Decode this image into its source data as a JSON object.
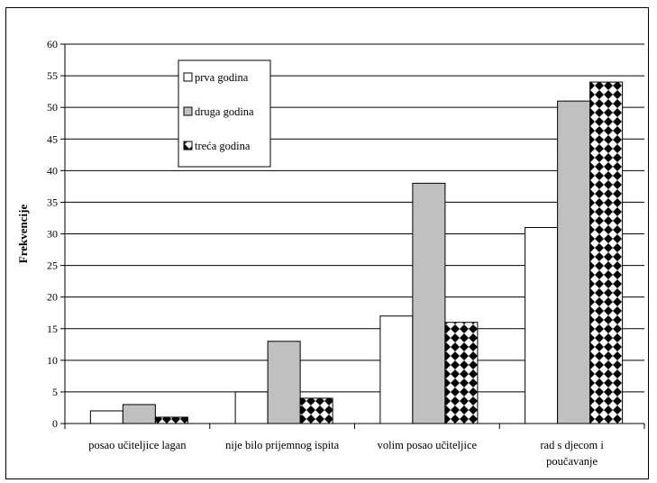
{
  "chart_data": {
    "type": "bar",
    "title": "",
    "xlabel": "",
    "ylabel": "Frekvencije",
    "ylim": [
      0,
      60
    ],
    "yticks": [
      0,
      5,
      10,
      15,
      20,
      25,
      30,
      35,
      40,
      45,
      50,
      55,
      60
    ],
    "grid": true,
    "legend_position": "top-left-inside",
    "categories": [
      [
        "posao učiteljice lagan"
      ],
      [
        "nije bilo prijemnog ispita"
      ],
      [
        "volim posao učiteljice"
      ],
      [
        "rad s djecom i",
        "poučavanje"
      ]
    ],
    "series": [
      {
        "name": "prva godina",
        "values": [
          2,
          5,
          17,
          31
        ],
        "fill": "#ffffff"
      },
      {
        "name": "druga godina",
        "values": [
          3,
          13,
          38,
          51
        ],
        "fill": "#c0c0c0"
      },
      {
        "name": "treća godina",
        "values": [
          1,
          4,
          16,
          54
        ],
        "fill": "pattern-checker"
      }
    ]
  }
}
